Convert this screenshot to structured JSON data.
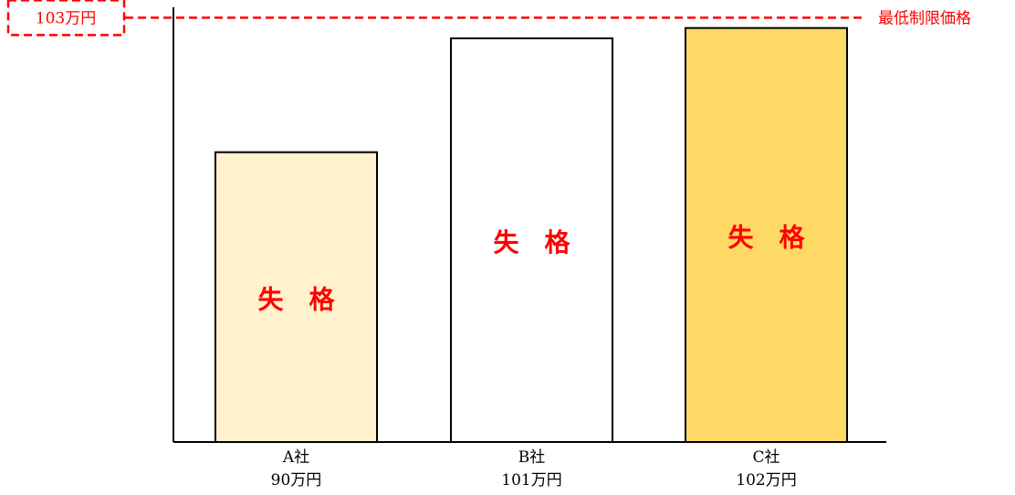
{
  "chart_data": {
    "type": "bar",
    "categories": [
      "A社",
      "B社",
      "C社"
    ],
    "values": [
      90,
      101,
      102
    ],
    "value_labels": [
      "90万円",
      "101万円",
      "102万円"
    ],
    "status_labels": [
      "失　格",
      "失　格",
      "失　格"
    ],
    "bar_colors": [
      "#FFF2CC",
      "#FFFFFF",
      "#FFD966"
    ],
    "reference_line": {
      "value": 103,
      "value_label": "103万円",
      "label": "最低制限価格",
      "color": "#FF0000",
      "style": "dashed"
    },
    "ylim": [
      62,
      104
    ],
    "grid": false,
    "title": "",
    "xlabel": "",
    "ylabel": ""
  },
  "colors": {
    "axis": "#000000",
    "bar_border": "#000000",
    "status_text": "#FF0000",
    "reference": "#FF0000"
  }
}
